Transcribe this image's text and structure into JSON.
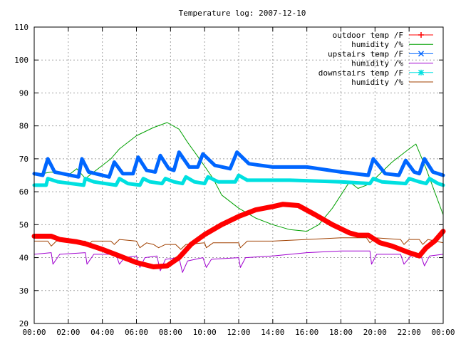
{
  "chart_data": {
    "type": "line",
    "title": "Temperature log: 2007-12-10",
    "xlabel": "",
    "ylabel": "",
    "xlim": [
      0,
      24
    ],
    "ylim": [
      20,
      110
    ],
    "grid": true,
    "legend_position": "top-right",
    "x_tick_labels": [
      "00:00",
      "02:00",
      "04:00",
      "06:00",
      "08:00",
      "10:00",
      "12:00",
      "14:00",
      "16:00",
      "18:00",
      "20:00",
      "22:00",
      "00:00"
    ],
    "y_tick_labels": [
      "20",
      "30",
      "40",
      "50",
      "60",
      "70",
      "80",
      "90",
      "100",
      "110"
    ],
    "series": [
      {
        "name": "outdoor temp /F",
        "color": "#ff0000",
        "marker": "plus",
        "points": [
          [
            0,
            46.5
          ],
          [
            1,
            46.5
          ],
          [
            1.5,
            45.5
          ],
          [
            2.5,
            44.8
          ],
          [
            3,
            44.2
          ],
          [
            4,
            42.5
          ],
          [
            5,
            40.5
          ],
          [
            6,
            38.5
          ],
          [
            7,
            37.2
          ],
          [
            7.8,
            37.5
          ],
          [
            8.5,
            40
          ],
          [
            9.2,
            44
          ],
          [
            10,
            47
          ],
          [
            11,
            50
          ],
          [
            12,
            52.5
          ],
          [
            13,
            54.5
          ],
          [
            14,
            55.5
          ],
          [
            14.6,
            56.2
          ],
          [
            15.5,
            55.8
          ],
          [
            16.5,
            53
          ],
          [
            17.5,
            50
          ],
          [
            18.5,
            47.5
          ],
          [
            19,
            46.8
          ],
          [
            19.6,
            46.8
          ],
          [
            20.3,
            44.5
          ],
          [
            21,
            43.5
          ],
          [
            22,
            41.5
          ],
          [
            22.6,
            40.5
          ],
          [
            23,
            43
          ],
          [
            23.5,
            45
          ],
          [
            24,
            48
          ]
        ]
      },
      {
        "name": "humidity /%",
        "color": "#00a000",
        "marker": "none",
        "points": [
          [
            0,
            65
          ],
          [
            1,
            66
          ],
          [
            2,
            65
          ],
          [
            2.5,
            67
          ],
          [
            3,
            64
          ],
          [
            4,
            68
          ],
          [
            4.5,
            70
          ],
          [
            5,
            73
          ],
          [
            6,
            77
          ],
          [
            7,
            79.5
          ],
          [
            7.8,
            81
          ],
          [
            8.5,
            79
          ],
          [
            9,
            75
          ],
          [
            9.7,
            70
          ],
          [
            10.5,
            64
          ],
          [
            11,
            59
          ],
          [
            12,
            55
          ],
          [
            13,
            52
          ],
          [
            14,
            50
          ],
          [
            15,
            48.5
          ],
          [
            16,
            48
          ],
          [
            16.7,
            50
          ],
          [
            17.5,
            55
          ],
          [
            18,
            59
          ],
          [
            18.5,
            63
          ],
          [
            19,
            61
          ],
          [
            19.5,
            62
          ],
          [
            20,
            64
          ],
          [
            21,
            69
          ],
          [
            22,
            73
          ],
          [
            22.4,
            74.5
          ],
          [
            23,
            67
          ],
          [
            23.5,
            60
          ],
          [
            24,
            53
          ]
        ]
      },
      {
        "name": "upstairs temp /F",
        "color": "#0066ff",
        "marker": "x",
        "points": [
          [
            0,
            65.5
          ],
          [
            0.5,
            65
          ],
          [
            0.8,
            70
          ],
          [
            1.2,
            66
          ],
          [
            2.6,
            64.5
          ],
          [
            2.8,
            70
          ],
          [
            3.2,
            66
          ],
          [
            4.4,
            64.5
          ],
          [
            4.7,
            69
          ],
          [
            5.2,
            65.5
          ],
          [
            5.8,
            65.5
          ],
          [
            6.1,
            70.5
          ],
          [
            6.6,
            66.5
          ],
          [
            7.1,
            66
          ],
          [
            7.4,
            71
          ],
          [
            7.9,
            67
          ],
          [
            8.2,
            66.5
          ],
          [
            8.5,
            72
          ],
          [
            9.1,
            67.5
          ],
          [
            9.6,
            67.5
          ],
          [
            9.9,
            71.5
          ],
          [
            10.6,
            68
          ],
          [
            11.5,
            67
          ],
          [
            11.9,
            72
          ],
          [
            12.6,
            68.5
          ],
          [
            14,
            67.5
          ],
          [
            16,
            67.5
          ],
          [
            18,
            66
          ],
          [
            19.6,
            65
          ],
          [
            19.9,
            70
          ],
          [
            20.6,
            65.5
          ],
          [
            21.4,
            65
          ],
          [
            21.8,
            69.5
          ],
          [
            22.3,
            66
          ],
          [
            22.6,
            65.5
          ],
          [
            22.9,
            70
          ],
          [
            23.4,
            66
          ],
          [
            24,
            65
          ]
        ]
      },
      {
        "name": "humidity /%",
        "color": "#a000d0",
        "marker": "none",
        "points": [
          [
            0,
            41
          ],
          [
            1,
            41.5
          ],
          [
            1.1,
            38
          ],
          [
            1.5,
            41
          ],
          [
            3,
            41.5
          ],
          [
            3.1,
            38
          ],
          [
            3.5,
            41
          ],
          [
            4.8,
            41
          ],
          [
            5,
            38
          ],
          [
            5.3,
            40
          ],
          [
            6,
            40.5
          ],
          [
            6.2,
            37
          ],
          [
            6.5,
            40
          ],
          [
            7.2,
            40.5
          ],
          [
            7.4,
            36
          ],
          [
            7.7,
            39.5
          ],
          [
            8.5,
            40
          ],
          [
            8.7,
            35.5
          ],
          [
            9,
            39
          ],
          [
            9.9,
            40
          ],
          [
            10.1,
            37
          ],
          [
            10.4,
            39.5
          ],
          [
            12,
            40
          ],
          [
            12.1,
            37
          ],
          [
            12.4,
            40
          ],
          [
            14,
            40.5
          ],
          [
            16,
            41.5
          ],
          [
            18,
            42
          ],
          [
            19.7,
            42
          ],
          [
            19.8,
            38
          ],
          [
            20.1,
            41
          ],
          [
            21.5,
            41
          ],
          [
            21.7,
            38
          ],
          [
            22.1,
            40.5
          ],
          [
            22.7,
            40.5
          ],
          [
            22.9,
            37.5
          ],
          [
            23.2,
            40.5
          ],
          [
            24,
            41
          ]
        ]
      },
      {
        "name": "downstairs temp /F",
        "color": "#00e0e0",
        "marker": "star",
        "points": [
          [
            0,
            62
          ],
          [
            0.7,
            62
          ],
          [
            0.8,
            64
          ],
          [
            1.4,
            63
          ],
          [
            2.9,
            62
          ],
          [
            3,
            64
          ],
          [
            3.5,
            63
          ],
          [
            4.8,
            62
          ],
          [
            5,
            64
          ],
          [
            5.5,
            62.5
          ],
          [
            6.2,
            62
          ],
          [
            6.4,
            64
          ],
          [
            6.8,
            63
          ],
          [
            7.5,
            62.5
          ],
          [
            7.7,
            64
          ],
          [
            8.2,
            63
          ],
          [
            8.7,
            62.5
          ],
          [
            8.9,
            64.5
          ],
          [
            9.4,
            63
          ],
          [
            10,
            62.5
          ],
          [
            10.2,
            64.5
          ],
          [
            10.8,
            63
          ],
          [
            11.8,
            63
          ],
          [
            12,
            65
          ],
          [
            12.5,
            63.5
          ],
          [
            15,
            63.5
          ],
          [
            18,
            63
          ],
          [
            19.7,
            62.5
          ],
          [
            19.9,
            64
          ],
          [
            20.4,
            63
          ],
          [
            21.8,
            62.5
          ],
          [
            22,
            64
          ],
          [
            22.6,
            63
          ],
          [
            23,
            62.5
          ],
          [
            23.2,
            64
          ],
          [
            23.7,
            62.5
          ],
          [
            24,
            62
          ]
        ]
      },
      {
        "name": "humidity /%",
        "color": "#a04000",
        "marker": "none",
        "points": [
          [
            0,
            45
          ],
          [
            0.8,
            45
          ],
          [
            1,
            43.5
          ],
          [
            1.3,
            45
          ],
          [
            3,
            45
          ],
          [
            3.1,
            43.5
          ],
          [
            3.4,
            45
          ],
          [
            4.5,
            45
          ],
          [
            4.7,
            44
          ],
          [
            5,
            45.5
          ],
          [
            6,
            45
          ],
          [
            6.2,
            43
          ],
          [
            6.6,
            44.5
          ],
          [
            7,
            44
          ],
          [
            7.3,
            43
          ],
          [
            7.7,
            44
          ],
          [
            8.3,
            44
          ],
          [
            8.6,
            42.5
          ],
          [
            8.9,
            44
          ],
          [
            10,
            44.5
          ],
          [
            10.1,
            43
          ],
          [
            10.5,
            44.5
          ],
          [
            12,
            44.5
          ],
          [
            12.1,
            43
          ],
          [
            12.5,
            45
          ],
          [
            14,
            45
          ],
          [
            16,
            45.5
          ],
          [
            18,
            46
          ],
          [
            19.5,
            46
          ],
          [
            19.7,
            44.5
          ],
          [
            20,
            46
          ],
          [
            21.5,
            45.5
          ],
          [
            21.7,
            44
          ],
          [
            22,
            45.5
          ],
          [
            22.6,
            45.5
          ],
          [
            22.8,
            44
          ],
          [
            23.1,
            45.5
          ],
          [
            24,
            44.5
          ]
        ]
      }
    ]
  }
}
